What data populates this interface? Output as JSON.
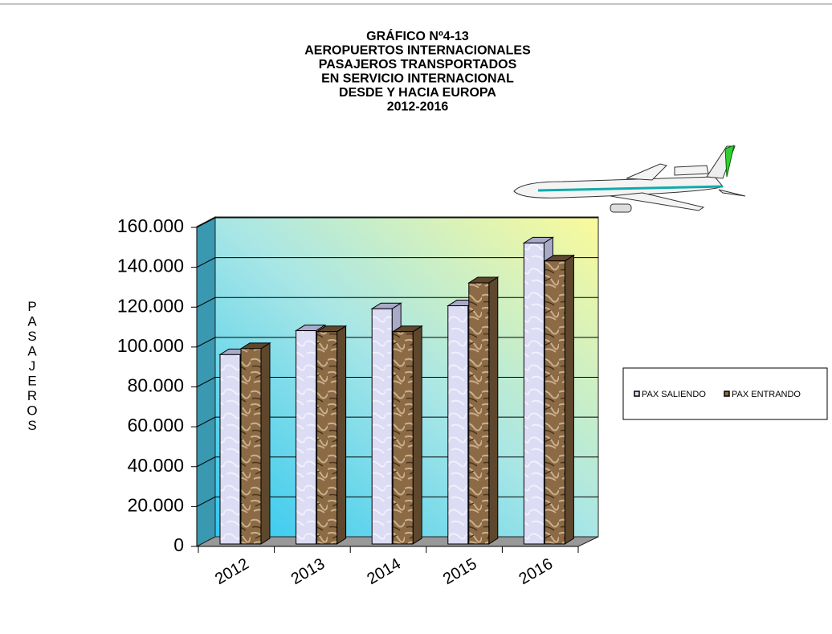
{
  "chart_data": {
    "type": "bar3d",
    "title": [
      "GRÁFICO Nº4-13",
      "AEROPUERTOS INTERNACIONALES",
      "PASAJEROS TRANSPORTADOS",
      "EN SERVICIO INTERNACIONAL",
      "DESDE Y HACIA EUROPA",
      "2012-2016"
    ],
    "y_label": "PASAJEROS",
    "categories": [
      "2012",
      "2013",
      "2014",
      "2015",
      "2016"
    ],
    "series": [
      {
        "name": "PAX SALIENDO",
        "color": "#dcdcf4",
        "values": [
          97000,
          109000,
          120000,
          121500,
          153000
        ]
      },
      {
        "name": "PAX ENTRANDO",
        "color": "#8b6a45",
        "values": [
          100000,
          108500,
          108500,
          133000,
          144000
        ]
      }
    ],
    "ylim": [
      0,
      160000
    ],
    "yticks": [
      0,
      {
        "value": 20000,
        "label": "20.000"
      },
      {
        "value": 40000,
        "label": "40.000"
      },
      {
        "value": 60000,
        "label": "60.000"
      },
      {
        "value": 80000,
        "label": "80.000"
      },
      {
        "value": 100000,
        "label": "100.000"
      },
      {
        "value": 120000,
        "label": "120.000"
      },
      {
        "value": 140000,
        "label": "140.000"
      },
      {
        "value": 160000,
        "label": "160.000"
      }
    ],
    "grid": true,
    "legend": "right"
  }
}
